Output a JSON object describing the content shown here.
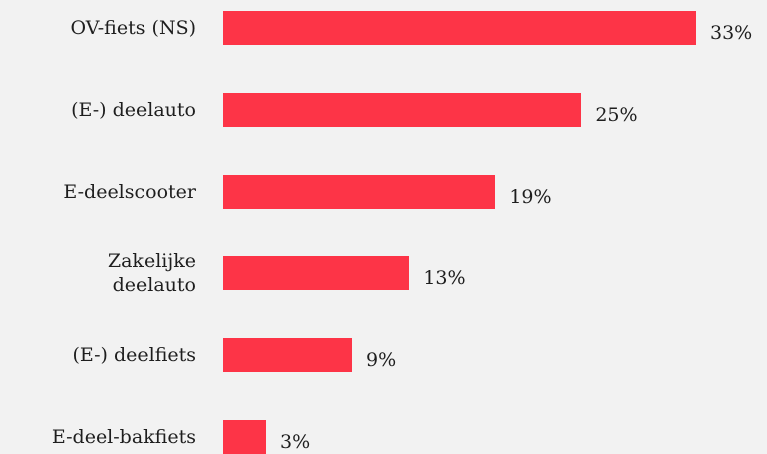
{
  "chart_data": {
    "type": "bar",
    "orientation": "horizontal",
    "categories": [
      "OV-fiets (NS)",
      "(E-) deelauto",
      "E-deelscooter",
      "Zakelijke\ndeelauto",
      "(E-) deelfiets",
      "E-deel-bakfiets"
    ],
    "values": [
      33,
      25,
      19,
      13,
      9,
      3
    ],
    "value_labels": [
      "33%",
      "25%",
      "19%",
      "13%",
      "9%",
      "3%"
    ],
    "color": "#fd3447"
  }
}
